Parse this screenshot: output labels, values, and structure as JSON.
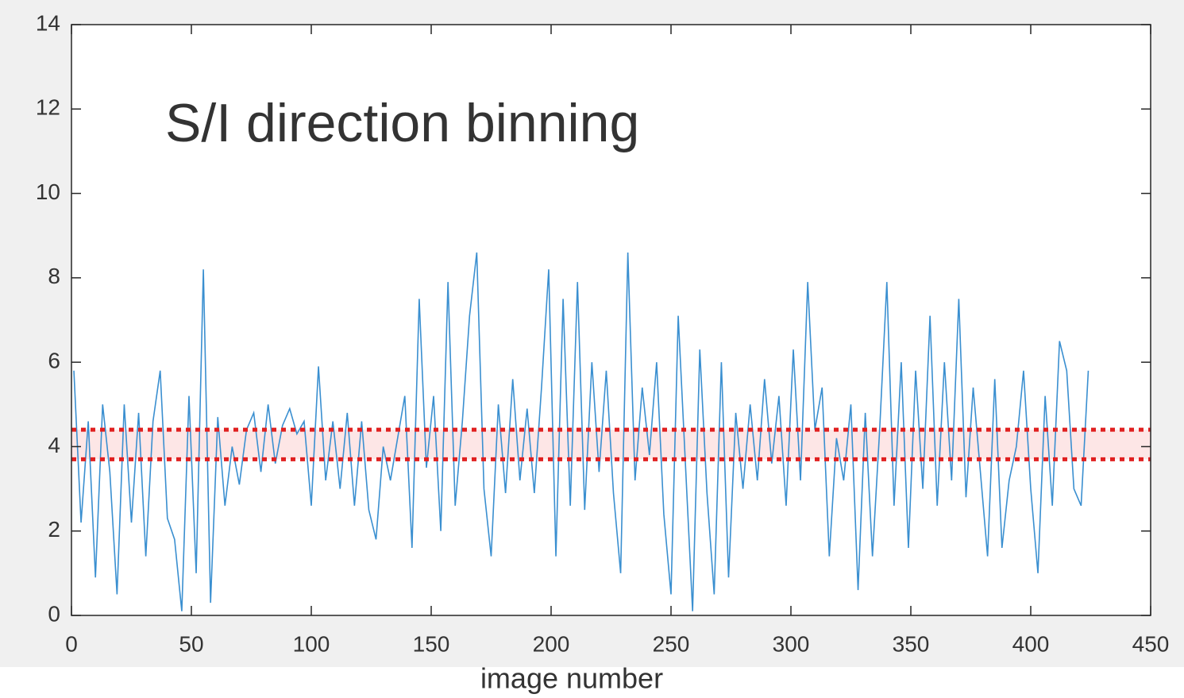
{
  "chart_data": {
    "type": "line",
    "title": "S/I direction binning",
    "x_label": "image number",
    "x": [
      1,
      4,
      7,
      10,
      13,
      16,
      19,
      22,
      25,
      28,
      31,
      34,
      37,
      40,
      43,
      46,
      49,
      52,
      55,
      58,
      61,
      64,
      67,
      70,
      73,
      76,
      79,
      82,
      85,
      88,
      91,
      94,
      97,
      100,
      103,
      106,
      109,
      112,
      115,
      118,
      121,
      124,
      127,
      130,
      133,
      136,
      139,
      142,
      145,
      148,
      151,
      154,
      157,
      160,
      163,
      166,
      169,
      172,
      175,
      178,
      181,
      184,
      187,
      190,
      193,
      196,
      199,
      202,
      205,
      208,
      211,
      214,
      217,
      220,
      223,
      226,
      229,
      232,
      235,
      238,
      241,
      244,
      247,
      250,
      253,
      256,
      259,
      262,
      265,
      268,
      271,
      274,
      277,
      280,
      283,
      286,
      289,
      292,
      295,
      298,
      301,
      304,
      307,
      310,
      313,
      316,
      319,
      322,
      325,
      328,
      331,
      334,
      337,
      340,
      343,
      346,
      349,
      352,
      355,
      358,
      361,
      364,
      367,
      370,
      373,
      376,
      379,
      382,
      385,
      388,
      391,
      394,
      397,
      400,
      403,
      406,
      409,
      412,
      415,
      418,
      421,
      424
    ],
    "values": [
      5.8,
      2.2,
      4.6,
      0.9,
      5.0,
      3.4,
      0.5,
      5.0,
      2.2,
      4.8,
      1.4,
      4.6,
      5.8,
      2.3,
      1.8,
      0.1,
      5.2,
      1.0,
      8.2,
      0.3,
      4.7,
      2.6,
      4.0,
      3.1,
      4.4,
      4.8,
      3.4,
      5.0,
      3.6,
      4.5,
      4.9,
      4.3,
      4.6,
      2.6,
      5.9,
      3.2,
      4.6,
      3.0,
      4.8,
      2.6,
      4.6,
      2.5,
      1.8,
      4.0,
      3.2,
      4.2,
      5.2,
      1.6,
      7.5,
      3.5,
      5.2,
      2.0,
      7.9,
      2.6,
      4.6,
      7.1,
      8.6,
      3.0,
      1.4,
      5.0,
      2.9,
      5.6,
      3.2,
      4.9,
      2.9,
      5.4,
      8.2,
      1.4,
      7.5,
      2.6,
      7.9,
      2.5,
      6.0,
      3.4,
      5.8,
      2.9,
      1.0,
      8.6,
      3.2,
      5.4,
      3.8,
      6.0,
      2.4,
      0.5,
      7.1,
      3.6,
      0.1,
      6.3,
      2.9,
      0.5,
      6.0,
      0.9,
      4.8,
      3.0,
      5.0,
      3.2,
      5.6,
      3.6,
      5.2,
      2.6,
      6.3,
      3.2,
      7.9,
      4.4,
      5.4,
      1.4,
      4.2,
      3.2,
      5.0,
      0.6,
      4.8,
      1.4,
      4.4,
      7.9,
      2.6,
      6.0,
      1.6,
      5.8,
      3.0,
      7.1,
      2.6,
      6.0,
      3.2,
      7.5,
      2.8,
      5.4,
      3.4,
      1.4,
      5.6,
      1.6,
      3.2,
      4.0,
      5.8,
      3.0,
      1.0,
      5.2,
      2.6,
      6.5,
      5.8,
      3.0,
      2.6,
      5.8
    ],
    "color": "#3a8fd0",
    "band": {
      "range": [
        3.7,
        4.4
      ],
      "color": "#e02020",
      "fill": "#fde6e6"
    },
    "xlim": [
      0,
      450
    ],
    "xticks": [
      0,
      50,
      100,
      150,
      200,
      250,
      300,
      350,
      400,
      450
    ],
    "ylim": [
      0,
      14
    ],
    "yticks": [
      0,
      2,
      4,
      6,
      8,
      10,
      12,
      14
    ]
  }
}
